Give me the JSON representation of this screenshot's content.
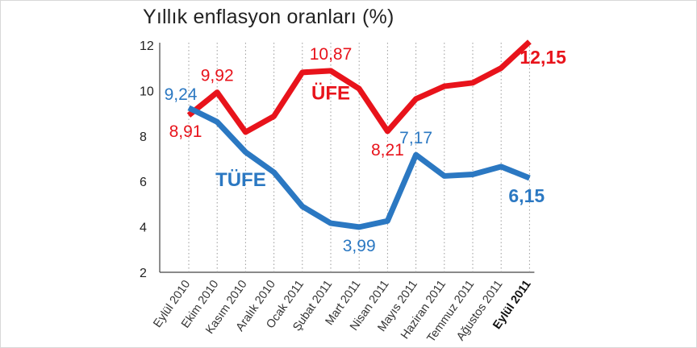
{
  "chart_data": {
    "type": "line",
    "title": "Yıllık enflasyon oranları (%)",
    "categories": [
      "Eylül 2010",
      "Ekim 2010",
      "Kasım 2010",
      "Aralık 2010",
      "Ocak 2011",
      "Şubat 2011",
      "Mart 2011",
      "Nisan 2011",
      "Mayıs 2011",
      "Haziran 2011",
      "Temmuz 2011",
      "Ağustos 2011",
      "Eylül 2011"
    ],
    "highlight_category_index": 12,
    "ylim": [
      2,
      12
    ],
    "yticks": [
      "2",
      "4",
      "6",
      "8",
      "10",
      "12"
    ],
    "grid": "dotted vertical",
    "series": [
      {
        "name": "ÜFE",
        "color": "#e8131b",
        "values": [
          8.91,
          9.92,
          8.17,
          8.87,
          10.8,
          10.87,
          10.08,
          8.21,
          9.63,
          10.19,
          10.34,
          10.99,
          12.15
        ],
        "labels": [
          {
            "index": 0,
            "text": "8,91",
            "pos": "below",
            "bold": false
          },
          {
            "index": 1,
            "text": "9,92",
            "pos": "above",
            "bold": false
          },
          {
            "index": 5,
            "text": "10,87",
            "pos": "above",
            "bold": false
          },
          {
            "index": 7,
            "text": "8,21",
            "pos": "below",
            "bold": false
          },
          {
            "index": 12,
            "text": "12,15",
            "pos": "right",
            "bold": true
          }
        ],
        "name_label": {
          "text": "ÜFE",
          "anchor_index": 5,
          "anchor_value": 9.6
        }
      },
      {
        "name": "TÜFE",
        "color": "#2b78c2",
        "values": [
          9.24,
          8.62,
          7.29,
          6.4,
          4.9,
          4.16,
          3.99,
          4.26,
          7.17,
          6.24,
          6.31,
          6.65,
          6.15
        ],
        "labels": [
          {
            "index": 0,
            "text": "9,24",
            "pos": "above",
            "bold": false
          },
          {
            "index": 6,
            "text": "3,99",
            "pos": "below",
            "bold": false
          },
          {
            "index": 8,
            "text": "7,17",
            "pos": "above",
            "bold": false
          },
          {
            "index": 12,
            "text": "6,15",
            "pos": "right",
            "bold": true
          }
        ],
        "name_label": {
          "text": "TÜFE",
          "anchor_index": 2,
          "anchor_value": 5.8
        }
      }
    ]
  }
}
